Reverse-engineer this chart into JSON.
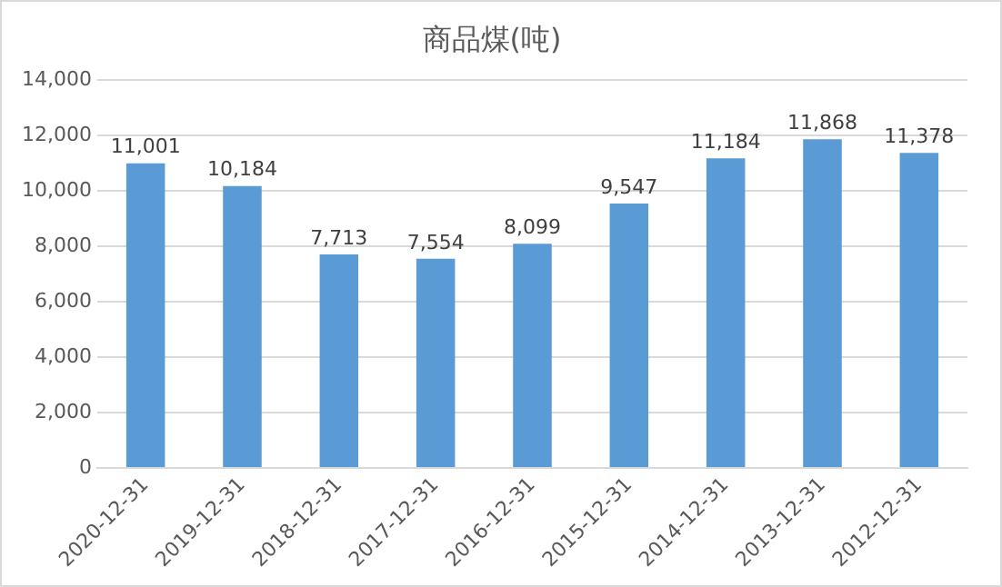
{
  "chart_data": {
    "type": "bar",
    "title": "商品煤(吨)",
    "categories": [
      "2020-12-31",
      "2019-12-31",
      "2018-12-31",
      "2017-12-31",
      "2016-12-31",
      "2015-12-31",
      "2014-12-31",
      "2013-12-31",
      "2012-12-31"
    ],
    "values": [
      11001,
      10184,
      7713,
      7554,
      8099,
      9547,
      11184,
      11868,
      11378
    ],
    "value_labels": [
      "11,001",
      "10,184",
      "7,713",
      "7,554",
      "8,099",
      "9,547",
      "11,184",
      "11,868",
      "11,378"
    ],
    "color": "#5b9bd5",
    "ylim": [
      0,
      14000
    ],
    "yticks": [
      {
        "value": 0,
        "label": "0"
      },
      {
        "value": 2000,
        "label": "2,000"
      },
      {
        "value": 4000,
        "label": "4,000"
      },
      {
        "value": 6000,
        "label": "6,000"
      },
      {
        "value": 8000,
        "label": "8,000"
      },
      {
        "value": 10000,
        "label": "10,000"
      },
      {
        "value": 12000,
        "label": "12,000"
      },
      {
        "value": 14000,
        "label": "14,000"
      }
    ],
    "grid": "y",
    "legend": false
  }
}
